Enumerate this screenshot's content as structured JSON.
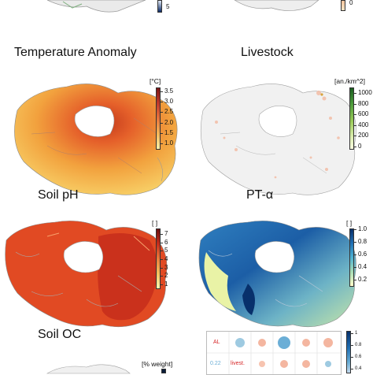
{
  "panels": {
    "temperature_anomaly": {
      "title": "Temperature Anomaly",
      "unit": "[°C]",
      "ticks": [
        "3.5",
        "3.0",
        "2.5",
        "2.0",
        "1.5",
        "1.0"
      ]
    },
    "livestock": {
      "title": "Livestock",
      "unit": "[an./km^2]",
      "ticks": [
        "1000",
        "800",
        "600",
        "400",
        "200",
        "0"
      ]
    },
    "soil_ph": {
      "title": "Soil pH",
      "unit": "[ ]",
      "ticks": [
        "7",
        "6",
        "5",
        "4",
        "3",
        "2",
        "1"
      ]
    },
    "pt_alpha": {
      "title": "PT-α",
      "unit": "[ ]",
      "ticks": [
        "1.0",
        "0.8",
        "0.6",
        "0.4",
        "0.2"
      ]
    },
    "soil_oc": {
      "title": "Soil OC",
      "unit": "[% weight]"
    }
  },
  "top_partial": {
    "left_tick": "5",
    "right_tick": "0"
  },
  "correlation": {
    "rows": [
      "AL",
      "livest."
    ],
    "row2_value": "0.22",
    "scale_ticks": [
      "1",
      "0.8",
      "0.6",
      "0.4"
    ]
  },
  "colors": {
    "temp_high": "#8b1a1a",
    "temp_low": "#fdf3a8",
    "live_high": "#1f6b1f",
    "live_low": "#f3f9c8",
    "ph_high": "#6b0f0f",
    "ph_low": "#fff7b0",
    "pt_high": "#08306b",
    "pt_low": "#ffffcc"
  }
}
